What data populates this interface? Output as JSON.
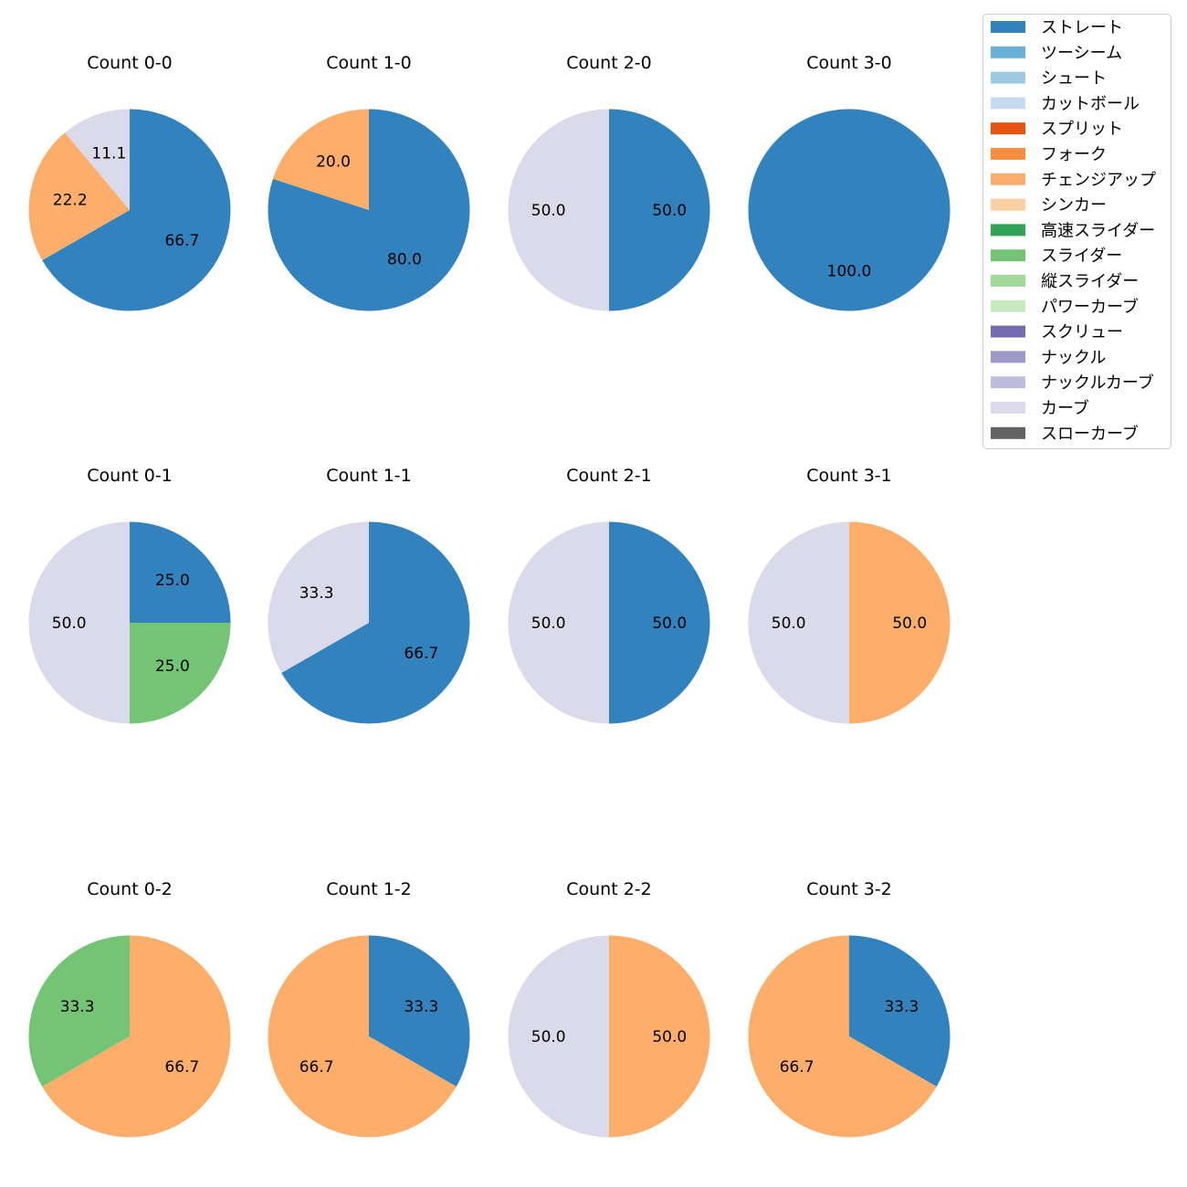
{
  "chart_data": {
    "type": "pie",
    "legend_position": "top-right",
    "legend": [
      {
        "label": "ストレート",
        "color": "#3182bd"
      },
      {
        "label": "ツーシーム",
        "color": "#6baed6"
      },
      {
        "label": "シュート",
        "color": "#9ecae1"
      },
      {
        "label": "カットボール",
        "color": "#c6dbef"
      },
      {
        "label": "スプリット",
        "color": "#e6550d"
      },
      {
        "label": "フォーク",
        "color": "#fd8d3c"
      },
      {
        "label": "チェンジアップ",
        "color": "#fdae6b"
      },
      {
        "label": "シンカー",
        "color": "#fdd0a2"
      },
      {
        "label": "高速スライダー",
        "color": "#31a354"
      },
      {
        "label": "スライダー",
        "color": "#74c476"
      },
      {
        "label": "縦スライダー",
        "color": "#a1d99b"
      },
      {
        "label": "パワーカーブ",
        "color": "#c7e9c0"
      },
      {
        "label": "スクリュー",
        "color": "#756bb1"
      },
      {
        "label": "ナックル",
        "color": "#9e9ac8"
      },
      {
        "label": "ナックルカーブ",
        "color": "#bcbddc"
      },
      {
        "label": "カーブ",
        "color": "#dadaeb"
      },
      {
        "label": "スローカーブ",
        "color": "#636363"
      }
    ],
    "charts": [
      {
        "title": "Count 0-0",
        "slices": [
          {
            "pitch": "ストレート",
            "value": 66.7
          },
          {
            "pitch": "チェンジアップ",
            "value": 22.2
          },
          {
            "pitch": "カーブ",
            "value": 11.1
          }
        ]
      },
      {
        "title": "Count 1-0",
        "slices": [
          {
            "pitch": "ストレート",
            "value": 80.0
          },
          {
            "pitch": "チェンジアップ",
            "value": 20.0
          }
        ]
      },
      {
        "title": "Count 2-0",
        "slices": [
          {
            "pitch": "ストレート",
            "value": 50.0
          },
          {
            "pitch": "カーブ",
            "value": 50.0
          }
        ]
      },
      {
        "title": "Count 3-0",
        "slices": [
          {
            "pitch": "ストレート",
            "value": 100.0
          }
        ]
      },
      {
        "title": "Count 0-1",
        "slices": [
          {
            "pitch": "ストレート",
            "value": 25.0
          },
          {
            "pitch": "スライダー",
            "value": 25.0
          },
          {
            "pitch": "カーブ",
            "value": 50.0
          }
        ]
      },
      {
        "title": "Count 1-1",
        "slices": [
          {
            "pitch": "ストレート",
            "value": 66.7
          },
          {
            "pitch": "カーブ",
            "value": 33.3
          }
        ]
      },
      {
        "title": "Count 2-1",
        "slices": [
          {
            "pitch": "ストレート",
            "value": 50.0
          },
          {
            "pitch": "カーブ",
            "value": 50.0
          }
        ]
      },
      {
        "title": "Count 3-1",
        "slices": [
          {
            "pitch": "チェンジアップ",
            "value": 50.0
          },
          {
            "pitch": "カーブ",
            "value": 50.0
          }
        ]
      },
      {
        "title": "Count 0-2",
        "slices": [
          {
            "pitch": "チェンジアップ",
            "value": 66.7
          },
          {
            "pitch": "スライダー",
            "value": 33.3
          }
        ]
      },
      {
        "title": "Count 1-2",
        "slices": [
          {
            "pitch": "ストレート",
            "value": 33.3
          },
          {
            "pitch": "チェンジアップ",
            "value": 66.7
          }
        ]
      },
      {
        "title": "Count 2-2",
        "slices": [
          {
            "pitch": "チェンジアップ",
            "value": 50.0
          },
          {
            "pitch": "カーブ",
            "value": 50.0
          }
        ]
      },
      {
        "title": "Count 3-2",
        "slices": [
          {
            "pitch": "ストレート",
            "value": 33.3
          },
          {
            "pitch": "チェンジアップ",
            "value": 66.7
          }
        ]
      }
    ]
  }
}
